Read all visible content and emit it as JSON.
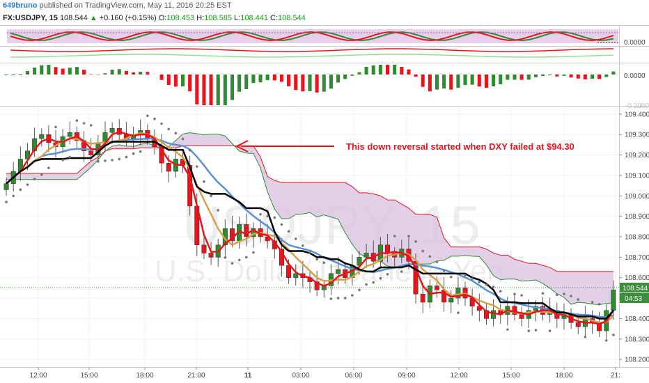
{
  "header": {
    "author": "649bruno",
    "published": "published on TradingView.com, May 11, 2016 20:25 EST",
    "symbol": "FX:USDJPY, 15",
    "last": "108.544",
    "change": "+0.160 (+0.15%)",
    "o_label": "O:",
    "o_val": "108.453",
    "h_label": "H:",
    "h_val": "108.585",
    "l_label": "L:",
    "l_val": "108.441",
    "c_label": "C:",
    "c_val": "108.544"
  },
  "watermark": {
    "line1": "USDJPY, 15",
    "line2": "U.S. Dollar/Japanese Yen"
  },
  "annotation": "This down reversal started when DXY failed at $94.30",
  "price_tags": {
    "price": "108.544",
    "timer": "04:53"
  },
  "colors": {
    "up": "#2e8b2e",
    "down": "#e8141c",
    "ma_fast": "#e8141c",
    "ma_mid": "#d4a04a",
    "ma_slow": "#5b8fd6",
    "kijun": "#000000",
    "cloud": "#d8c0e0",
    "oscillator_bg": "#e6cfea"
  },
  "chart_data": {
    "type": "candlestick",
    "interval": "15",
    "y_axis": {
      "ticks": [
        "109.400",
        "109.300",
        "109.200",
        "109.100",
        "109.000",
        "108.900",
        "108.800",
        "108.700",
        "108.600",
        "108.500",
        "108.400",
        "108.300",
        "108.200"
      ],
      "range": [
        108.17,
        109.43
      ]
    },
    "x_axis": {
      "ticks": [
        "12:00",
        "15:00",
        "18:00",
        "21:00",
        "11",
        "03:00",
        "06:00",
        "09:00",
        "12:00",
        "15:00",
        "18:00",
        "21:"
      ]
    },
    "oscillator_axis": {
      "labels": [
        "0.0000"
      ]
    },
    "macd_axis": {
      "labels": [
        "0.0000",
        "-0.2000"
      ]
    },
    "close": [
      109.06,
      109.12,
      109.18,
      109.22,
      109.28,
      109.3,
      109.26,
      109.24,
      109.29,
      109.31,
      109.27,
      109.22,
      109.2,
      109.26,
      109.31,
      109.33,
      109.3,
      109.28,
      109.3,
      109.32,
      109.28,
      109.24,
      109.16,
      109.12,
      109.18,
      109.15,
      108.95,
      108.76,
      108.72,
      108.7,
      108.76,
      108.84,
      108.78,
      108.86,
      108.8,
      108.84,
      108.8,
      108.78,
      108.74,
      108.66,
      108.6,
      108.62,
      108.6,
      108.58,
      108.54,
      108.56,
      108.62,
      108.64,
      108.6,
      108.66,
      108.7,
      108.72,
      108.68,
      108.76,
      108.72,
      108.7,
      108.74,
      108.68,
      108.52,
      108.48,
      108.56,
      108.54,
      108.48,
      108.5,
      108.55,
      108.5,
      108.46,
      108.44,
      108.4,
      108.44,
      108.42,
      108.46,
      108.42,
      108.4,
      108.44,
      108.46,
      108.42,
      108.44,
      108.4,
      108.42,
      108.38,
      108.36,
      108.4,
      108.38,
      108.34,
      108.44,
      108.54
    ]
  }
}
